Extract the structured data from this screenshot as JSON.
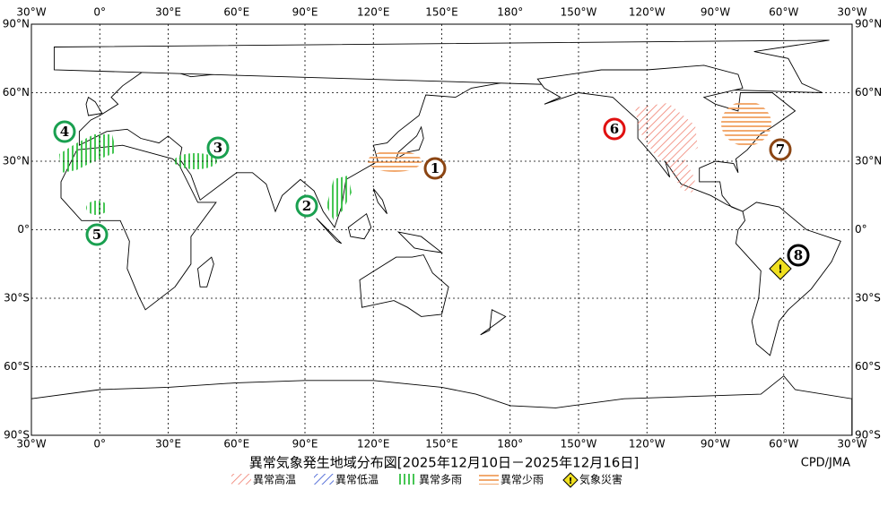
{
  "map": {
    "lon_labels": [
      "30°W",
      "0°",
      "30°E",
      "60°E",
      "90°E",
      "120°E",
      "150°E",
      "180°",
      "150°W",
      "120°W",
      "90°W",
      "60°W",
      "30°W"
    ],
    "lat_labels": [
      "90°N",
      "60°N",
      "30°N",
      "0°",
      "30°S",
      "60°S",
      "90°S"
    ],
    "markers": [
      "1",
      "2",
      "3",
      "4",
      "5",
      "6",
      "7",
      "8"
    ],
    "hazard_icon": "!"
  },
  "title": "異常気象発生地域分布図[2025年12月10日－2025年12月16日]",
  "credit": "CPD/JMA",
  "legend": [
    "異常高温",
    "異常低温",
    "異常多雨",
    "異常少雨",
    "気象災害"
  ]
}
